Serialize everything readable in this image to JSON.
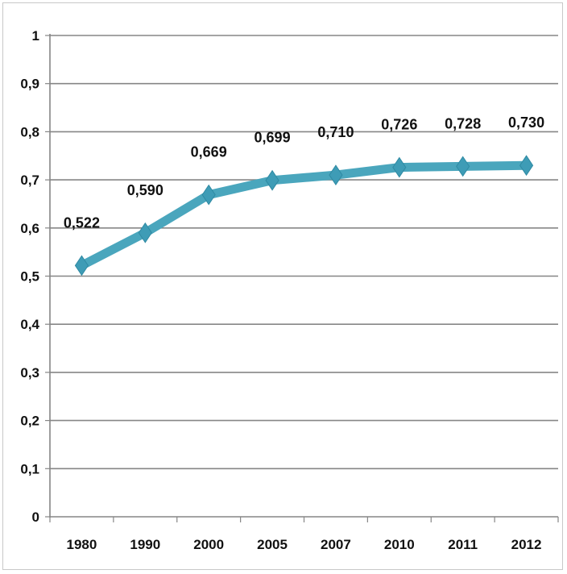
{
  "chart_data": {
    "type": "line",
    "title": "",
    "xlabel": "",
    "ylabel": "",
    "categories": [
      "1980",
      "1990",
      "2000",
      "2005",
      "2007",
      "2010",
      "2011",
      "2012"
    ],
    "series": [
      {
        "values": [
          0.522,
          0.59,
          0.669,
          0.699,
          0.71,
          0.726,
          0.728,
          0.73
        ],
        "data_labels": [
          "0,522",
          "0,590",
          "0,669",
          "0,699",
          "0,710",
          "0,726",
          "0,728",
          "0,730"
        ]
      }
    ],
    "ylim": [
      0,
      1
    ],
    "yticks": [
      0,
      0.1,
      0.2,
      0.3,
      0.4,
      0.5,
      0.6,
      0.7,
      0.8,
      0.9,
      1
    ],
    "ytick_labels": [
      "0",
      "0,1",
      "0,2",
      "0,3",
      "0,4",
      "0,5",
      "0,6",
      "0,7",
      "0,8",
      "0,9",
      "1"
    ],
    "grid": true,
    "legend": "none",
    "marker": "diamond",
    "colors": {
      "line": "#4aa6bd",
      "marker": "#3e9cb6",
      "grid": "#868686",
      "axis": "#868686",
      "text": "#111111"
    }
  }
}
